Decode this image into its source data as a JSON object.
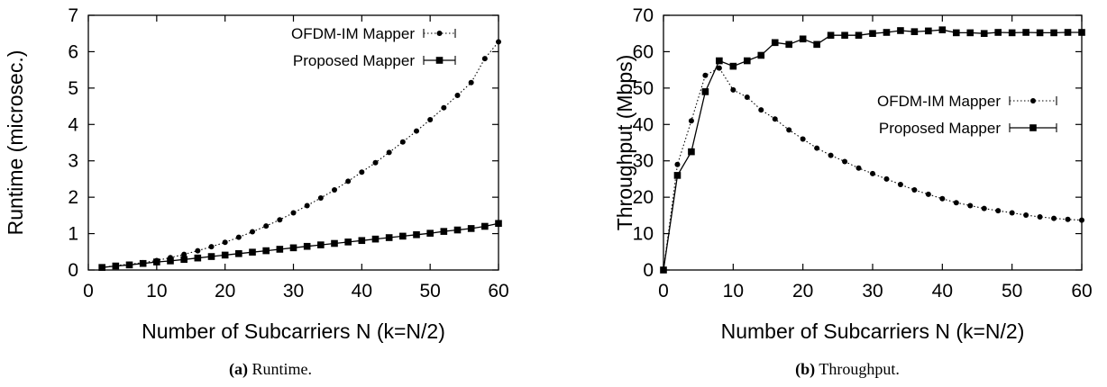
{
  "chart_data": [
    {
      "type": "line",
      "caption_label": "(a)",
      "caption_text": " Runtime.",
      "xlabel": "Number of Subcarriers N (k=N/2)",
      "ylabel": "Runtime (microsec.)",
      "xlim": [
        0,
        60
      ],
      "ylim": [
        0,
        7
      ],
      "xticks": [
        0,
        10,
        20,
        30,
        40,
        50,
        60
      ],
      "yticks": [
        0,
        1,
        2,
        3,
        4,
        5,
        6,
        7
      ],
      "grid": false,
      "legend_position": "top-right",
      "series": [
        {
          "name": "OFDM-IM Mapper",
          "style": "dotted",
          "marker": "circle",
          "x": [
            2,
            4,
            6,
            8,
            10,
            12,
            14,
            16,
            18,
            20,
            22,
            24,
            26,
            28,
            30,
            32,
            34,
            36,
            38,
            40,
            42,
            44,
            46,
            48,
            50,
            52,
            54,
            56,
            58,
            60
          ],
          "y": [
            0.07,
            0.12,
            0.16,
            0.2,
            0.26,
            0.34,
            0.43,
            0.53,
            0.64,
            0.76,
            0.9,
            1.05,
            1.21,
            1.38,
            1.57,
            1.77,
            1.98,
            2.2,
            2.44,
            2.69,
            2.95,
            3.23,
            3.52,
            3.82,
            4.13,
            4.46,
            4.8,
            5.15,
            5.81,
            6.27
          ]
        },
        {
          "name": "Proposed Mapper",
          "style": "solid",
          "marker": "square",
          "x": [
            2,
            4,
            6,
            8,
            10,
            12,
            14,
            16,
            18,
            20,
            22,
            24,
            26,
            28,
            30,
            32,
            34,
            36,
            38,
            40,
            42,
            44,
            46,
            48,
            50,
            52,
            54,
            56,
            58,
            60
          ],
          "y": [
            0.07,
            0.11,
            0.14,
            0.18,
            0.22,
            0.25,
            0.29,
            0.33,
            0.37,
            0.41,
            0.45,
            0.49,
            0.53,
            0.57,
            0.61,
            0.65,
            0.69,
            0.73,
            0.77,
            0.81,
            0.85,
            0.89,
            0.93,
            0.97,
            1.01,
            1.06,
            1.1,
            1.14,
            1.2,
            1.28
          ]
        }
      ]
    },
    {
      "type": "line",
      "caption_label": "(b)",
      "caption_text": " Throughput.",
      "xlabel": "Number of Subcarriers N (k=N/2)",
      "ylabel": "Throughput (Mbps)",
      "xlim": [
        0,
        60
      ],
      "ylim": [
        0,
        70
      ],
      "xticks": [
        0,
        10,
        20,
        30,
        40,
        50,
        60
      ],
      "yticks": [
        0,
        10,
        20,
        30,
        40,
        50,
        60,
        70
      ],
      "grid": false,
      "legend_position": "center-right",
      "series": [
        {
          "name": "OFDM-IM Mapper",
          "style": "dotted",
          "marker": "circle",
          "x": [
            0,
            2,
            4,
            6,
            8,
            10,
            12,
            14,
            16,
            18,
            20,
            22,
            24,
            26,
            28,
            30,
            32,
            34,
            36,
            38,
            40,
            42,
            44,
            46,
            48,
            50,
            52,
            54,
            56,
            58,
            60
          ],
          "y": [
            0,
            29,
            41,
            53.5,
            55.5,
            49.5,
            47.5,
            44,
            41.5,
            38.5,
            36,
            33.5,
            31.5,
            29.8,
            28,
            26.5,
            25,
            23.5,
            22,
            20.8,
            19.6,
            18.5,
            17.7,
            16.9,
            16.3,
            15.7,
            15.1,
            14.6,
            14.2,
            13.9,
            13.7
          ]
        },
        {
          "name": "Proposed Mapper",
          "style": "solid",
          "marker": "square",
          "x": [
            0,
            2,
            4,
            6,
            8,
            10,
            12,
            14,
            16,
            18,
            20,
            22,
            24,
            26,
            28,
            30,
            32,
            34,
            36,
            38,
            40,
            42,
            44,
            46,
            48,
            50,
            52,
            54,
            56,
            58,
            60
          ],
          "y": [
            0,
            26,
            32.5,
            49,
            57.5,
            56,
            57.5,
            59,
            62.5,
            62,
            63.5,
            62,
            64.5,
            64.5,
            64.5,
            65,
            65.3,
            65.8,
            65.5,
            65.7,
            66,
            65.2,
            65.2,
            65,
            65.3,
            65.2,
            65.3,
            65.2,
            65.2,
            65.3,
            65.3
          ]
        }
      ]
    }
  ]
}
